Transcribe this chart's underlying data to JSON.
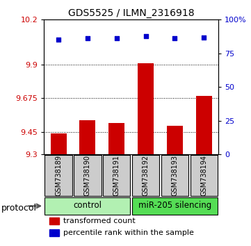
{
  "title": "GDS5525 / ILMN_2316918",
  "samples": [
    "GSM738189",
    "GSM738190",
    "GSM738191",
    "GSM738192",
    "GSM738193",
    "GSM738194"
  ],
  "bar_values": [
    9.44,
    9.53,
    9.51,
    9.91,
    9.49,
    9.69
  ],
  "percentile_values": [
    85,
    86,
    86,
    88,
    86,
    87
  ],
  "ylim_left": [
    9.3,
    10.2
  ],
  "ylim_right": [
    0,
    100
  ],
  "yticks_left": [
    9.3,
    9.45,
    9.675,
    9.9,
    10.2
  ],
  "yticks_right": [
    0,
    25,
    50,
    75,
    100
  ],
  "ytick_labels_right": [
    "0",
    "25",
    "50",
    "75",
    "100%"
  ],
  "bar_color": "#cc0000",
  "dot_color": "#0000cc",
  "bar_width": 0.55,
  "group_labels": [
    "control",
    "miR-205 silencing"
  ],
  "group_color_control": "#b2f0b2",
  "group_color_mir": "#55dd55",
  "protocol_label": "protocol",
  "legend_bar_label": "transformed count",
  "legend_dot_label": "percentile rank within the sample",
  "tick_label_color_left": "#cc0000",
  "tick_label_color_right": "#0000cc",
  "grid_yticks": [
    9.45,
    9.675,
    9.9
  ]
}
